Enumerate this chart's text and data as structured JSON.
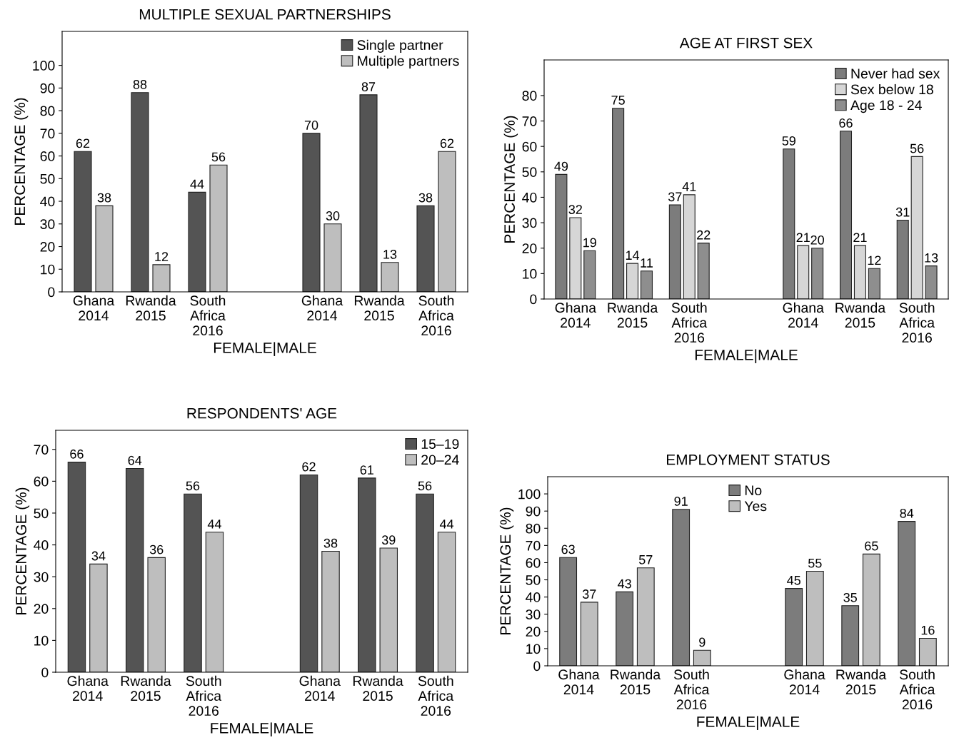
{
  "chart_data": [
    {
      "type": "bar",
      "title": "MULTIPLE SEXUAL PARTNERSHIPS",
      "xlabel": "FEMALE|MALE",
      "ylabel": "PERCENTAGE (%)",
      "categories": [
        "Ghana\n2014",
        "Rwanda\n2015",
        "South\nAfrica\n2016",
        null,
        "Ghana\n2014",
        "Rwanda\n2015",
        "South\nAfrica\n2016"
      ],
      "series": [
        {
          "name": "Single partner",
          "color": "#545454",
          "values": [
            62,
            88,
            44,
            null,
            70,
            87,
            38
          ]
        },
        {
          "name": "Multiple partners",
          "color": "#bebebe",
          "values": [
            38,
            12,
            56,
            null,
            30,
            13,
            62
          ]
        }
      ],
      "ylim": [
        0,
        115
      ],
      "yticks": [
        0,
        10,
        20,
        30,
        40,
        50,
        60,
        70,
        80,
        90,
        100
      ],
      "data_labels": true,
      "legend": "top right",
      "grid": false
    },
    {
      "type": "bar",
      "title": "AGE AT FIRST SEX",
      "xlabel": "FEMALE|MALE",
      "ylabel": "PERCENTAGE (%)",
      "categories": [
        "Ghana\n2014",
        "Rwanda\n2015",
        "South\nAfrica\n2016",
        null,
        "Ghana\n2014",
        "Rwanda\n2015",
        "South\nAfrica\n2016"
      ],
      "series": [
        {
          "name": "Never had sex",
          "color": "#7c7c7c",
          "values": [
            49,
            75,
            37,
            null,
            59,
            66,
            31
          ]
        },
        {
          "name": "Sex below 18",
          "color": "#d6d6d6",
          "values": [
            32,
            14,
            41,
            null,
            21,
            21,
            56
          ]
        },
        {
          "name": "Age 18 - 24",
          "color": "#8e8e8e",
          "values": [
            19,
            11,
            22,
            null,
            20,
            12,
            13
          ]
        }
      ],
      "ylim": [
        0,
        94
      ],
      "yticks": [
        0,
        10,
        20,
        30,
        40,
        50,
        60,
        70,
        80
      ],
      "data_labels": true,
      "legend": "top right",
      "grid": false
    },
    {
      "type": "bar",
      "title": "RESPONDENTS' AGE",
      "xlabel": "FEMALE|MALE",
      "ylabel": "PERCENTAGE (%)",
      "categories": [
        "Ghana\n2014",
        "Rwanda\n2015",
        "South\nAfrica\n2016",
        null,
        "Ghana\n2014",
        "Rwanda\n2015",
        "South\nAfrica\n2016"
      ],
      "series": [
        {
          "name": "15–19",
          "color": "#545454",
          "values": [
            66,
            64,
            56,
            null,
            62,
            61,
            56
          ]
        },
        {
          "name": "20–24",
          "color": "#bebebe",
          "values": [
            34,
            36,
            44,
            null,
            38,
            39,
            44
          ]
        }
      ],
      "ylim": [
        0,
        76
      ],
      "yticks": [
        0,
        10,
        20,
        30,
        40,
        50,
        60,
        70
      ],
      "data_labels": true,
      "legend": "top right",
      "grid": false
    },
    {
      "type": "bar",
      "title": "EMPLOYMENT STATUS",
      "xlabel": "FEMALE|MALE",
      "ylabel": "PERCENTAGE (%)",
      "categories": [
        "Ghana\n2014",
        "Rwanda\n2015",
        "South\nAfrica\n2016",
        null,
        "Ghana\n2014",
        "Rwanda\n2015",
        "South\nAfrica\n2016"
      ],
      "series": [
        {
          "name": "No",
          "color": "#7c7c7c",
          "values": [
            63,
            43,
            91,
            null,
            45,
            35,
            84
          ]
        },
        {
          "name": "Yes",
          "color": "#bebebe",
          "values": [
            37,
            57,
            9,
            null,
            55,
            65,
            16
          ]
        }
      ],
      "ylim": [
        0,
        110
      ],
      "yticks": [
        0,
        10,
        20,
        30,
        40,
        50,
        60,
        70,
        80,
        90,
        100
      ],
      "data_labels": true,
      "legend": "top",
      "grid": false
    }
  ]
}
